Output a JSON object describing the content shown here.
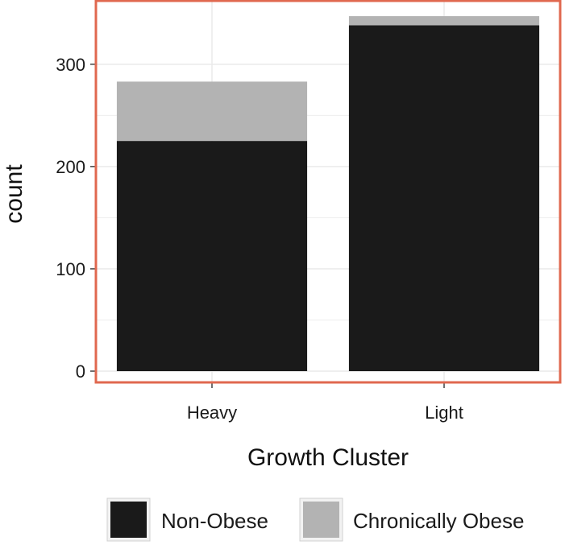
{
  "chart_data": {
    "type": "bar",
    "stacked": true,
    "categories": [
      "Heavy",
      "Light"
    ],
    "series": [
      {
        "name": "Non-Obese",
        "values": [
          225,
          338
        ],
        "color": "#1a1a1a"
      },
      {
        "name": "Chronically Obese",
        "values": [
          58,
          9
        ],
        "color": "#b3b3b3"
      }
    ],
    "xlabel": "Growth Cluster",
    "ylabel": "count",
    "ylim": [
      -11,
      362
    ],
    "yticks": [
      0,
      100,
      200,
      300
    ],
    "grid": true,
    "legend_position": "bottom",
    "colors": {
      "panel_border": "#e0684f",
      "grid": "#ebebeb",
      "axis": "#333333"
    }
  }
}
